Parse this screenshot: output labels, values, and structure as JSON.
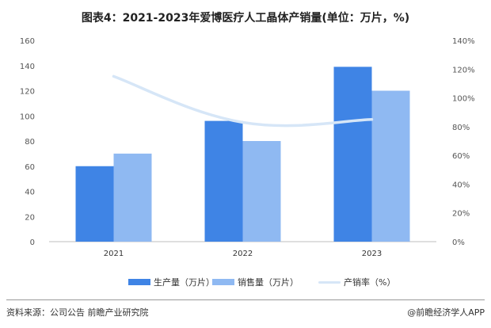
{
  "title": "图表4：2021-2023年爱博医疗人工晶体产销量(单位：万片，%)",
  "colors": {
    "production": "#3f84e5",
    "sales": "#8fb9f2",
    "rate": "#d6e6f7"
  },
  "chart_data": {
    "type": "bar",
    "categories": [
      "2021",
      "2022",
      "2023"
    ],
    "series": [
      {
        "name": "生产量（万片）",
        "axis": "left",
        "values": [
          60,
          96,
          139
        ]
      },
      {
        "name": "销售量（万片）",
        "axis": "left",
        "values": [
          70,
          80,
          120
        ]
      },
      {
        "name": "产销率（%）",
        "axis": "right",
        "type": "line",
        "values": [
          115,
          83,
          85
        ]
      }
    ],
    "ylim": [
      0,
      160
    ],
    "y_ticks": [
      0,
      20,
      40,
      60,
      80,
      100,
      120,
      140,
      160
    ],
    "y2lim": [
      0,
      140
    ],
    "y2_ticks": [
      "0%",
      "20%",
      "40%",
      "60%",
      "80%",
      "100%",
      "120%",
      "140%"
    ],
    "grid": false,
    "legend": "bottom"
  },
  "footer": {
    "source": "资料来源：公司公告 前瞻产业研究院",
    "brand": "@前瞻经济学人APP"
  }
}
